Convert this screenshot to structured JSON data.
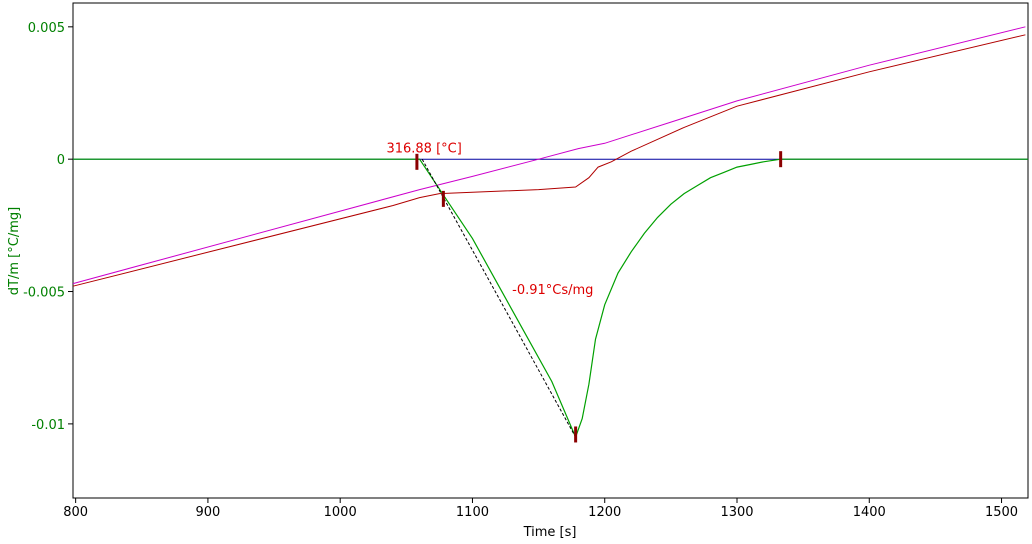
{
  "chart_data": {
    "type": "line",
    "xlabel": "Time [s]",
    "ylabel": "dT/m  [°C/mg]",
    "xlim": [
      798,
      1520
    ],
    "ylim": [
      -0.0128,
      0.0059
    ],
    "x_ticks": [
      800,
      900,
      1000,
      1100,
      1200,
      1300,
      1400,
      1500
    ],
    "y_ticks": [
      0.005,
      0,
      -0.005,
      -0.01
    ],
    "y_tick_labels": [
      "0.005",
      "0",
      "-0.005",
      "-0.01"
    ],
    "grid": false,
    "colors": {
      "axis_text_y": "#008000",
      "annotation": "#dd0000",
      "marker": "#8b0000"
    },
    "annotations": [
      {
        "text": "316.88 [°C]",
        "x": 1035,
        "y": 0.00025
      },
      {
        "text": "-0.91°Cs/mg",
        "x": 1130,
        "y": -0.0051
      }
    ],
    "markers": [
      {
        "x": 1058,
        "y": -0.0001
      },
      {
        "x": 1078,
        "y": -0.0015
      },
      {
        "x": 1178,
        "y": -0.0104
      },
      {
        "x": 1333,
        "y": 0.0
      }
    ],
    "series": [
      {
        "color": "#0000a0",
        "x": [
          798,
          1520
        ],
        "y": [
          0.0,
          0.0
        ]
      },
      {
        "color": "#cc00cc",
        "x": [
          798,
          1060,
          1100,
          1150,
          1180,
          1200,
          1250,
          1300,
          1400,
          1518
        ],
        "y": [
          -0.0047,
          -0.00115,
          -0.00065,
          0.0,
          0.0004,
          0.0006,
          0.0014,
          0.0022,
          0.00355,
          0.005
        ]
      },
      {
        "color": "#b00000",
        "x": [
          798,
          1040,
          1060,
          1075,
          1100,
          1150,
          1178,
          1188,
          1195,
          1205,
          1220,
          1260,
          1300,
          1400,
          1518
        ],
        "y": [
          -0.0048,
          -0.00175,
          -0.00145,
          -0.0013,
          -0.00125,
          -0.00115,
          -0.00105,
          -0.0007,
          -0.0003,
          -0.0001,
          0.0003,
          0.0012,
          0.002,
          0.0033,
          0.0047
        ]
      },
      {
        "color": "#00a000",
        "x": [
          798,
          1060,
          1080,
          1100,
          1120,
          1140,
          1160,
          1178,
          1183,
          1188,
          1193,
          1200,
          1210,
          1220,
          1230,
          1240,
          1250,
          1260,
          1270,
          1280,
          1290,
          1300,
          1310,
          1320,
          1333,
          1400,
          1520
        ],
        "y": [
          0.0,
          0.0,
          -0.0015,
          -0.003,
          -0.0048,
          -0.0066,
          -0.0084,
          -0.0105,
          -0.0098,
          -0.0085,
          -0.0068,
          -0.0055,
          -0.0043,
          -0.0035,
          -0.0028,
          -0.0022,
          -0.0017,
          -0.0013,
          -0.001,
          -0.0007,
          -0.0005,
          -0.0003,
          -0.0002,
          -0.0001,
          0.0,
          0.0,
          0.0
        ]
      },
      {
        "color": "#000000",
        "x": [
          1062,
          1178
        ],
        "y": [
          0.0,
          -0.0105
        ]
      }
    ]
  }
}
